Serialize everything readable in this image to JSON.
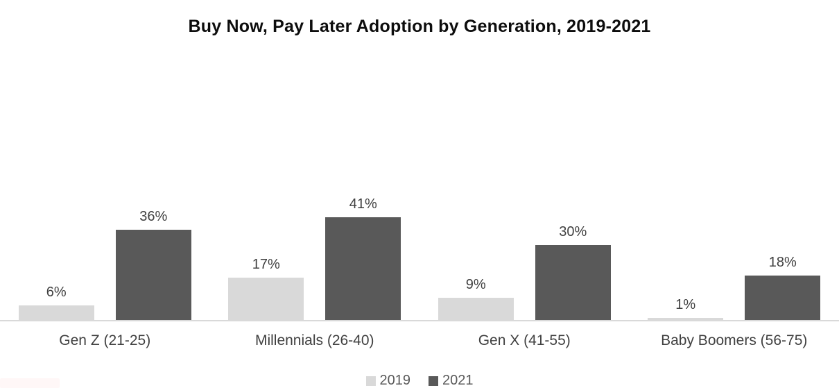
{
  "title": "Buy Now, Pay Later Adoption by Generation, 2019-2021",
  "colors": {
    "series_2019": "#d9d9d9",
    "series_2021": "#595959",
    "axis_line": "#d9d9d9",
    "label_text": "#404040",
    "legend_text": "#595959",
    "title_text": "#0d0d0d"
  },
  "chart_data": {
    "type": "bar",
    "title": "Buy Now, Pay Later Adoption by Generation, 2019-2021",
    "categories": [
      "Gen Z (21-25)",
      "Millennials (26-40)",
      "Gen X (41-55)",
      "Baby Boomers (56-75)"
    ],
    "series": [
      {
        "name": "2019",
        "color": "#d9d9d9",
        "values": [
          6,
          17,
          9,
          1
        ],
        "labels": [
          "6%",
          "17%",
          "9%",
          "1%"
        ]
      },
      {
        "name": "2021",
        "color": "#595959",
        "values": [
          36,
          41,
          30,
          18
        ],
        "labels": [
          "36%",
          "41%",
          "30%",
          "18%"
        ]
      }
    ],
    "value_unit": "%",
    "xlabel": "",
    "ylabel": "",
    "ylim": [
      0,
      45
    ],
    "grid": false,
    "y_axis_visible": false,
    "data_labels": true,
    "legend_position": "bottom"
  },
  "legend": {
    "items": [
      {
        "label": "2019",
        "color": "#d9d9d9"
      },
      {
        "label": "2021",
        "color": "#595959"
      }
    ]
  }
}
